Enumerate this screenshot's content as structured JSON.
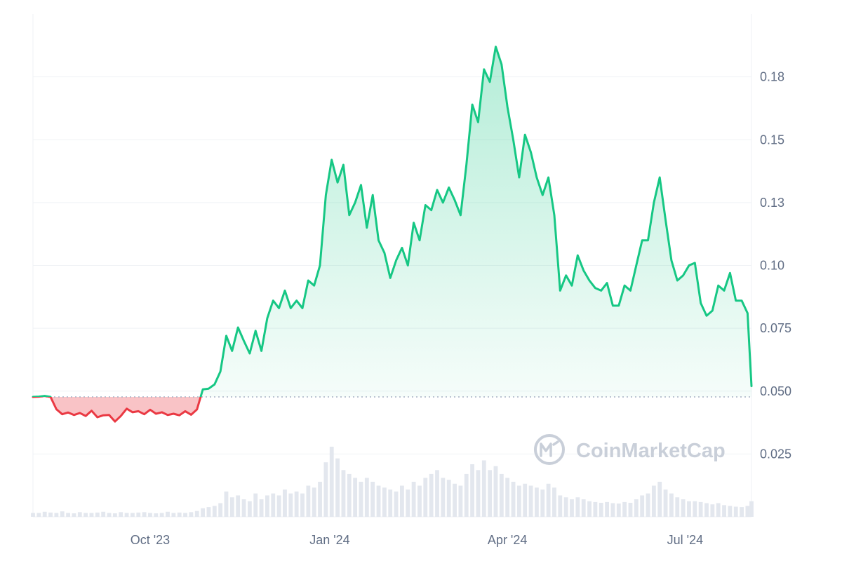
{
  "watermark": {
    "text": "CoinMarketCap"
  },
  "colors": {
    "up_line": "#16c784",
    "down_line": "#ea3943",
    "up_fill": "#16c784",
    "down_fill": "#ea3943",
    "grid": "#eff2f5",
    "baseline": "#a6b0c3",
    "volume": "#e3e7ee",
    "tick_text": "#616e85"
  },
  "chart_data": {
    "type": "area",
    "title": "",
    "xlabel": "",
    "ylabel": "",
    "y_axis_side": "right",
    "grid": {
      "horizontal": true,
      "vertical": false
    },
    "ylim": [
      0.0,
      0.2
    ],
    "x_range": [
      "2023-08-02",
      "2024-08-04"
    ],
    "baseline_value": 0.0477,
    "y_ticks": [
      {
        "value": 0.025,
        "label": "0.025"
      },
      {
        "value": 0.05,
        "label": "0.050"
      },
      {
        "value": 0.075,
        "label": "0.075"
      },
      {
        "value": 0.1,
        "label": "0.10"
      },
      {
        "value": 0.125,
        "label": "0.13"
      },
      {
        "value": 0.15,
        "label": "0.15"
      },
      {
        "value": 0.175,
        "label": "0.18"
      }
    ],
    "x_ticks": [
      {
        "date": "2023-10-01",
        "label": "Oct '23"
      },
      {
        "date": "2024-01-01",
        "label": "Jan '24"
      },
      {
        "date": "2024-04-01",
        "label": "Apr '24"
      },
      {
        "date": "2024-07-01",
        "label": "Jul '24"
      }
    ],
    "series": [
      {
        "x": [
          "2023-08-02",
          "2023-08-05",
          "2023-08-08",
          "2023-08-11",
          "2023-08-14",
          "2023-08-17",
          "2023-08-20",
          "2023-08-23",
          "2023-08-26",
          "2023-08-29",
          "2023-09-01",
          "2023-09-04",
          "2023-09-07",
          "2023-09-10",
          "2023-09-13",
          "2023-09-16",
          "2023-09-19",
          "2023-09-22",
          "2023-09-25",
          "2023-09-28",
          "2023-10-01",
          "2023-10-04",
          "2023-10-07",
          "2023-10-10",
          "2023-10-13",
          "2023-10-16",
          "2023-10-19",
          "2023-10-22",
          "2023-10-25",
          "2023-10-28",
          "2023-10-31",
          "2023-11-03",
          "2023-11-06",
          "2023-11-09",
          "2023-11-12",
          "2023-11-15",
          "2023-11-18",
          "2023-11-21",
          "2023-11-24",
          "2023-11-27",
          "2023-11-30",
          "2023-12-03",
          "2023-12-06",
          "2023-12-09",
          "2023-12-12",
          "2023-12-15",
          "2023-12-18",
          "2023-12-21",
          "2023-12-24",
          "2023-12-27",
          "2023-12-30",
          "2024-01-02",
          "2024-01-05",
          "2024-01-08",
          "2024-01-11",
          "2024-01-14",
          "2024-01-17",
          "2024-01-20",
          "2024-01-23",
          "2024-01-26",
          "2024-01-29",
          "2024-02-01",
          "2024-02-04",
          "2024-02-07",
          "2024-02-10",
          "2024-02-13",
          "2024-02-16",
          "2024-02-19",
          "2024-02-22",
          "2024-02-25",
          "2024-02-28",
          "2024-03-02",
          "2024-03-05",
          "2024-03-08",
          "2024-03-11",
          "2024-03-14",
          "2024-03-17",
          "2024-03-20",
          "2024-03-23",
          "2024-03-26",
          "2024-03-29",
          "2024-04-01",
          "2024-04-04",
          "2024-04-07",
          "2024-04-10",
          "2024-04-13",
          "2024-04-16",
          "2024-04-19",
          "2024-04-22",
          "2024-04-25",
          "2024-04-28",
          "2024-05-01",
          "2024-05-04",
          "2024-05-07",
          "2024-05-10",
          "2024-05-13",
          "2024-05-16",
          "2024-05-19",
          "2024-05-22",
          "2024-05-25",
          "2024-05-28",
          "2024-05-31",
          "2024-06-03",
          "2024-06-06",
          "2024-06-09",
          "2024-06-12",
          "2024-06-15",
          "2024-06-18",
          "2024-06-21",
          "2024-06-24",
          "2024-06-27",
          "2024-06-30",
          "2024-07-03",
          "2024-07-06",
          "2024-07-09",
          "2024-07-12",
          "2024-07-15",
          "2024-07-18",
          "2024-07-21",
          "2024-07-24",
          "2024-07-27",
          "2024-07-30",
          "2024-08-02",
          "2024-08-04"
        ],
        "values": [
          0.0477,
          0.0478,
          0.0481,
          0.0477,
          0.0428,
          0.0408,
          0.0415,
          0.0405,
          0.0413,
          0.0401,
          0.0422,
          0.0396,
          0.0404,
          0.0405,
          0.0379,
          0.0401,
          0.043,
          0.0416,
          0.042,
          0.0408,
          0.0426,
          0.041,
          0.0416,
          0.0405,
          0.041,
          0.0404,
          0.042,
          0.0406,
          0.0427,
          0.0507,
          0.051,
          0.0527,
          0.0578,
          0.072,
          0.066,
          0.0753,
          0.07,
          0.065,
          0.074,
          0.066,
          0.079,
          0.086,
          0.083,
          0.09,
          0.083,
          0.086,
          0.083,
          0.094,
          0.092,
          0.1,
          0.128,
          0.142,
          0.133,
          0.14,
          0.12,
          0.125,
          0.132,
          0.115,
          0.128,
          0.11,
          0.105,
          0.095,
          0.102,
          0.107,
          0.1,
          0.117,
          0.11,
          0.124,
          0.122,
          0.13,
          0.125,
          0.131,
          0.126,
          0.12,
          0.14,
          0.164,
          0.157,
          0.178,
          0.173,
          0.187,
          0.18,
          0.163,
          0.15,
          0.135,
          0.152,
          0.145,
          0.135,
          0.128,
          0.135,
          0.12,
          0.09,
          0.096,
          0.092,
          0.104,
          0.098,
          0.094,
          0.091,
          0.09,
          0.093,
          0.084,
          0.084,
          0.092,
          0.09,
          0.1,
          0.11,
          0.11,
          0.125,
          0.135,
          0.118,
          0.102,
          0.094,
          0.096,
          0.1,
          0.101,
          0.085,
          0.08,
          0.082,
          0.092,
          0.09,
          0.097,
          0.086,
          0.086,
          0.081,
          0.052
        ],
        "volume": [
          1,
          1,
          1.3,
          1.1,
          1,
          1.4,
          1,
          0.9,
          1.2,
          1,
          1,
          1.1,
          1.3,
          1,
          0.9,
          1.2,
          1,
          1,
          1.1,
          1.2,
          1,
          0.9,
          1,
          1.3,
          1,
          1.1,
          1,
          1.2,
          1.5,
          2.2,
          2.5,
          2.8,
          3.5,
          6.5,
          5,
          5.5,
          4.5,
          4,
          6,
          4.5,
          5.5,
          6,
          5.5,
          7,
          6,
          6.5,
          6,
          8,
          7.5,
          9,
          14,
          18,
          15,
          12,
          11,
          10,
          9,
          10,
          9,
          8,
          7.5,
          7,
          6.5,
          8,
          7,
          9,
          8,
          10,
          11,
          12,
          10,
          9.5,
          8.5,
          8,
          11,
          13.5,
          12,
          14.5,
          12,
          13,
          11,
          10,
          9,
          8,
          8.5,
          8,
          7.5,
          7,
          8.5,
          7.5,
          5.5,
          5,
          4.5,
          5,
          4.5,
          4,
          3.8,
          3.6,
          3.8,
          3.5,
          3.4,
          3.8,
          3.6,
          4.5,
          5.5,
          6,
          8,
          9,
          7,
          6,
          5,
          4.5,
          4,
          4,
          3.8,
          3.5,
          3.2,
          3.5,
          3,
          2.8,
          2.6,
          2.5,
          2.8,
          4
        ]
      }
    ]
  }
}
